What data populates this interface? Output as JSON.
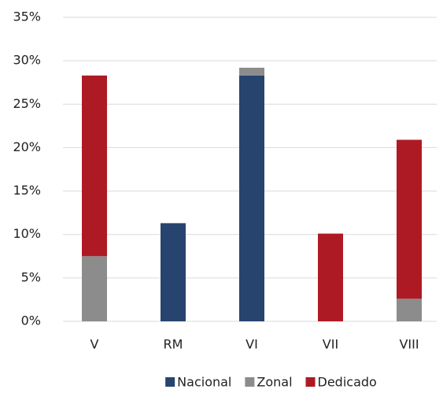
{
  "chart_data": {
    "type": "stacked_bar",
    "categories": [
      "V",
      "RM",
      "VI",
      "VII",
      "VIII"
    ],
    "series": [
      {
        "name": "Nacional",
        "color": "#27446e",
        "values": [
          0,
          11.3,
          28.3,
          0,
          0
        ]
      },
      {
        "name": "Zonal",
        "color": "#8c8c8c",
        "values": [
          7.5,
          0,
          0.9,
          0,
          2.6
        ]
      },
      {
        "name": "Dedicado",
        "color": "#ae1a24",
        "values": [
          20.8,
          0,
          0,
          10.1,
          18.3
        ]
      }
    ],
    "ylim": [
      0,
      35
    ],
    "yticks": [
      {
        "value": 0,
        "label": "0%"
      },
      {
        "value": 5,
        "label": "5%"
      },
      {
        "value": 10,
        "label": "10%"
      },
      {
        "value": 15,
        "label": "15%"
      },
      {
        "value": 20,
        "label": "20%"
      },
      {
        "value": 25,
        "label": "25%"
      },
      {
        "value": 30,
        "label": "30%"
      },
      {
        "value": 35,
        "label": "35%"
      }
    ],
    "grid": true,
    "legend": "bottom"
  }
}
